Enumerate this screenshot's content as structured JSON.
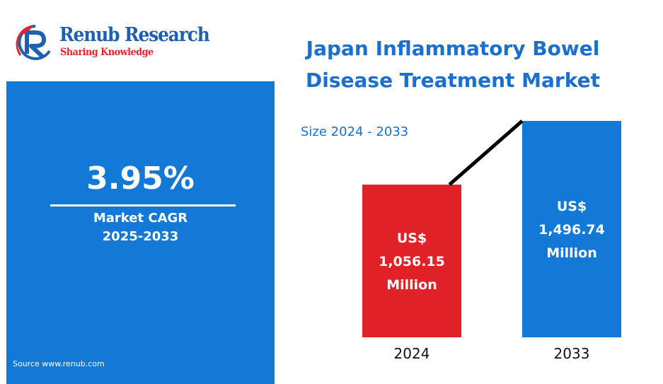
{
  "brand": {
    "name": "Renub Research",
    "tagline": "Sharing Knowledge",
    "colors": {
      "blue": "#1f5fb0",
      "red": "#e0262c"
    }
  },
  "headline": {
    "value": "3.95%",
    "label": "Market CAGR",
    "period": "2025-2033"
  },
  "source": "Source  www.renub.com",
  "chart_data": {
    "type": "bar",
    "title_lines": [
      "Japan Inflammatory Bowel",
      "Disease Treatment Market"
    ],
    "subtitle": "Size 2024 - 2033",
    "xlabel": "",
    "ylabel": "",
    "unit": "US$ Million",
    "categories": [
      "2024",
      "2033"
    ],
    "values": [
      1056.15,
      1496.74
    ],
    "bar_labels": [
      [
        "US$",
        "1,056.15",
        "Million"
      ],
      [
        "US$",
        "1,496.74",
        "Million"
      ]
    ],
    "colors": [
      "#e02127",
      "#1379d6"
    ],
    "trend_line": true,
    "grid": false,
    "legend": "none"
  }
}
